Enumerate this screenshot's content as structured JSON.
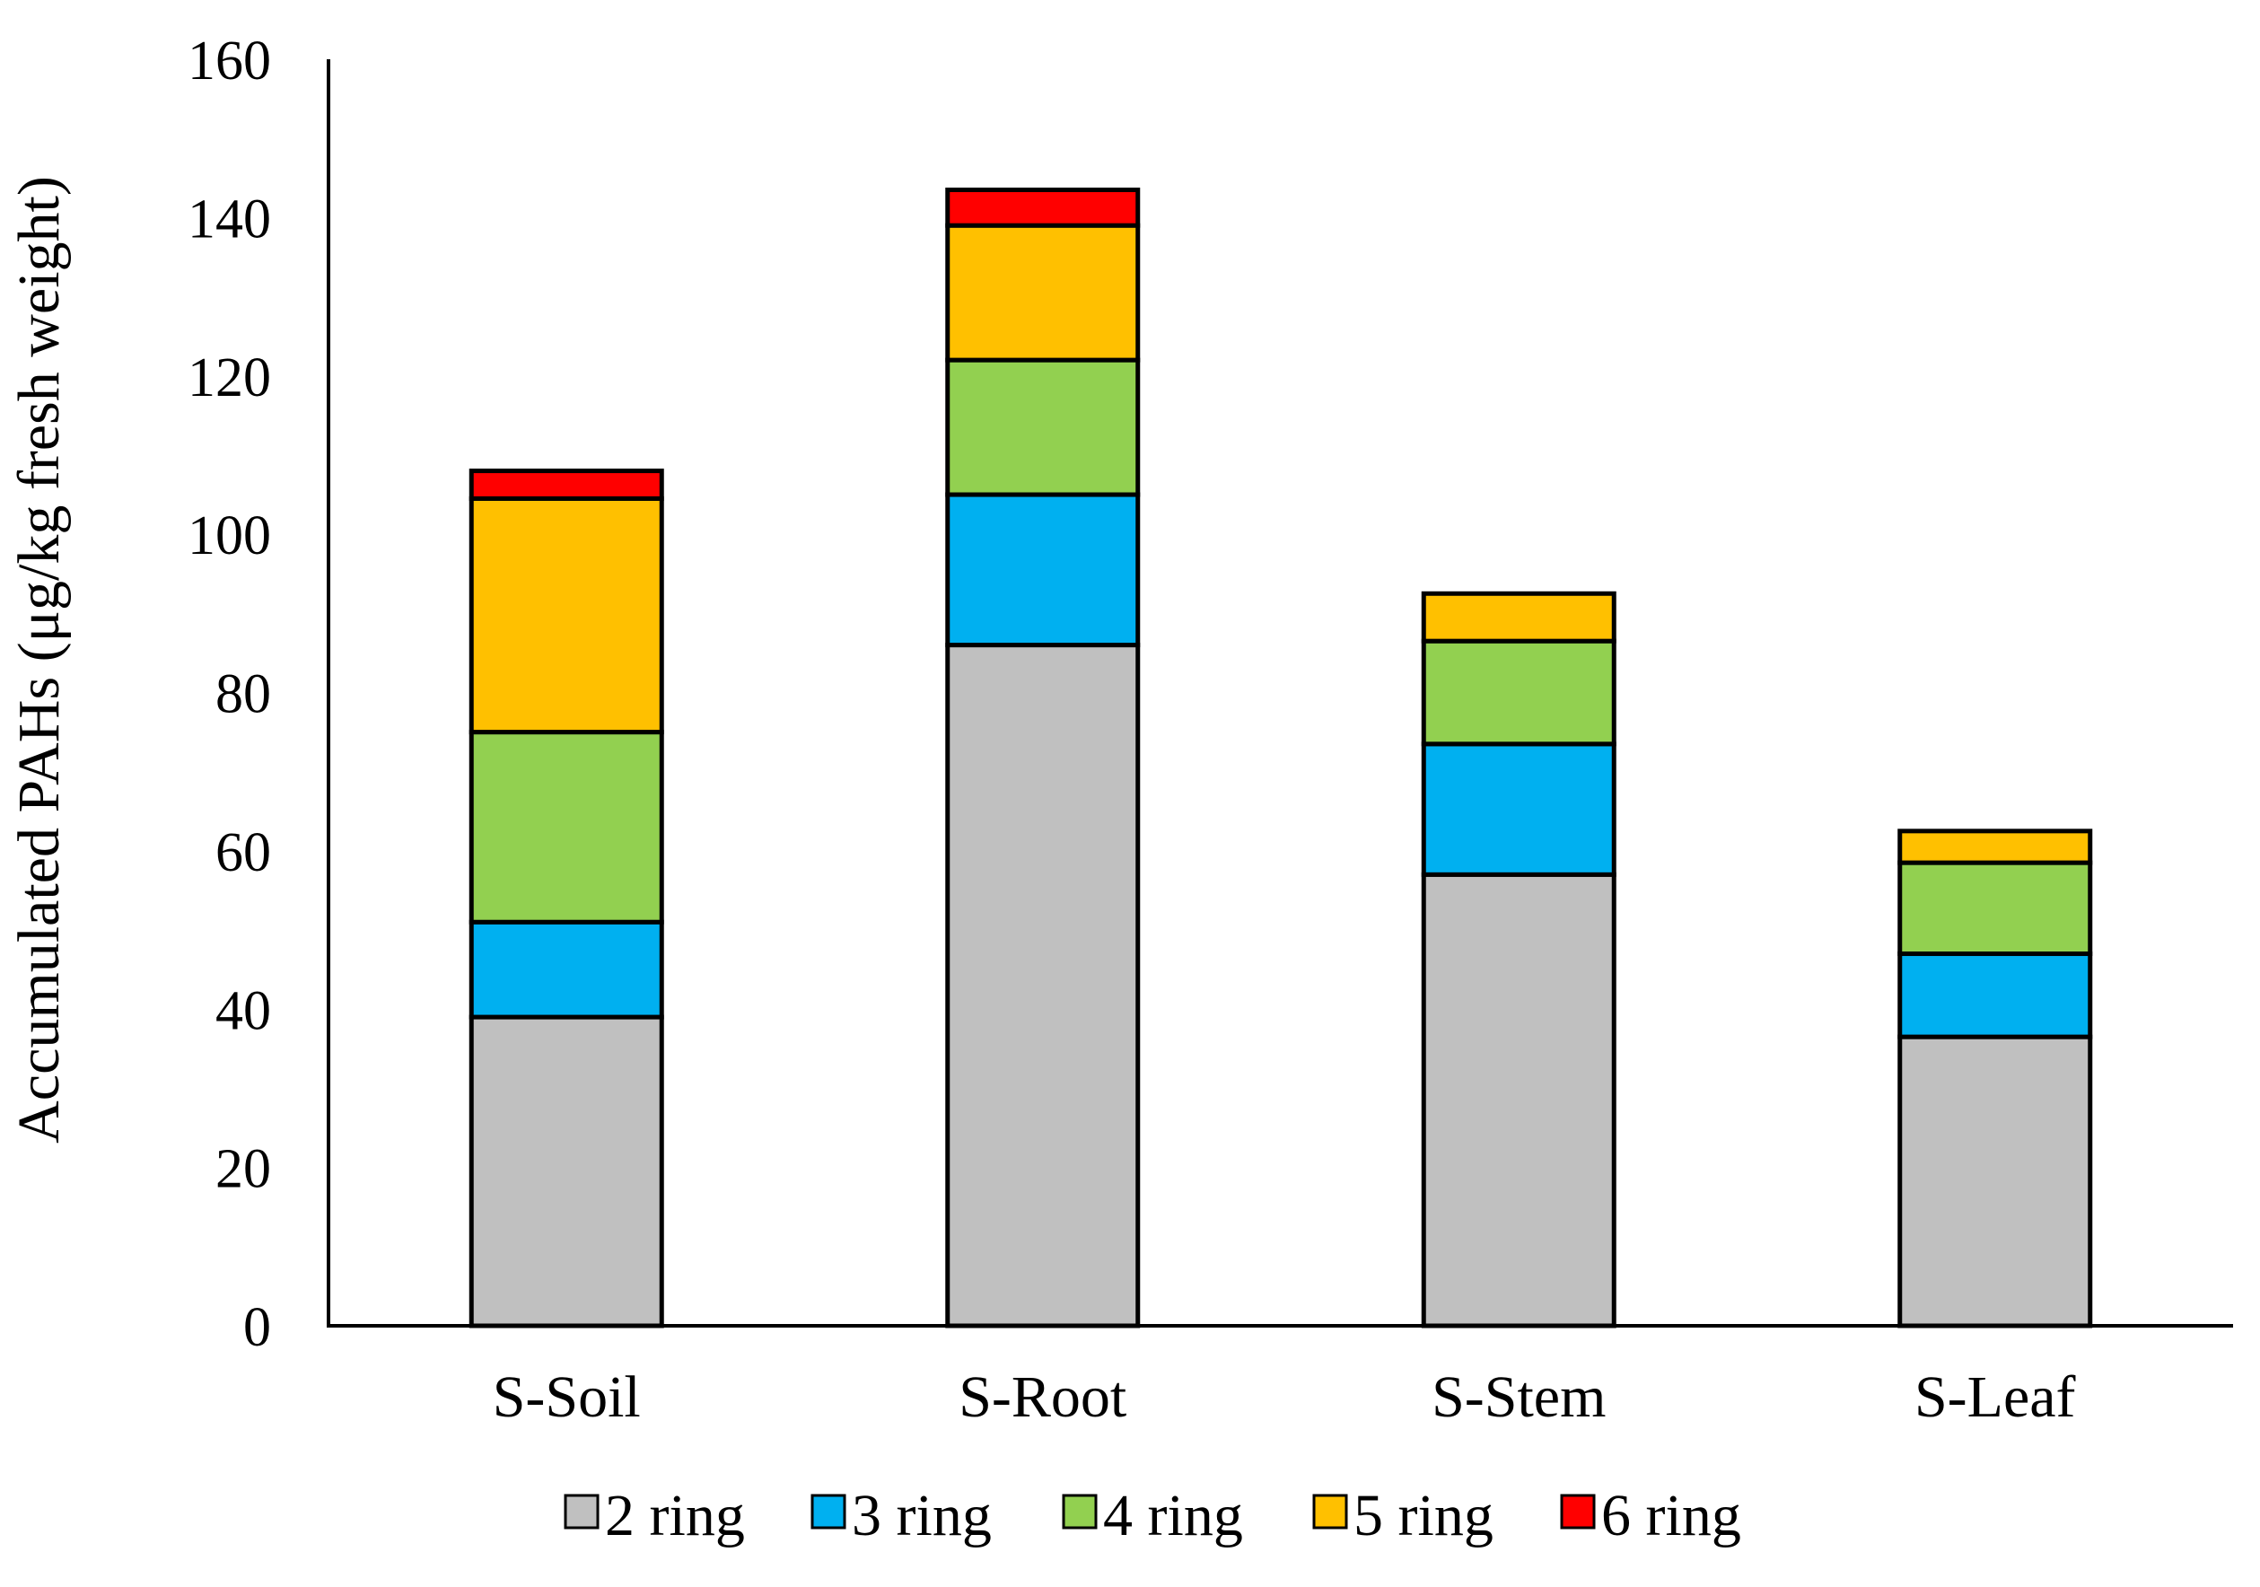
{
  "chart_data": {
    "type": "bar",
    "stacked": true,
    "title": "",
    "xlabel": "",
    "ylabel": "Accumulated PAHs (μg/kg fresh weight)",
    "ylim": [
      0,
      160
    ],
    "yticks": [
      0,
      20,
      40,
      60,
      80,
      100,
      120,
      140,
      160
    ],
    "grid": false,
    "legend_position": "bottom",
    "categories": [
      "S-Soil",
      "S-Root",
      "S-Stem",
      "S-Leaf"
    ],
    "series": [
      {
        "name": "2 ring",
        "color": "#c0c0c0",
        "values": [
          39,
          86,
          57,
          36.5
        ]
      },
      {
        "name": "3 ring",
        "color": "#00b0f0",
        "values": [
          12,
          19,
          16.5,
          10.5
        ]
      },
      {
        "name": "4 ring",
        "color": "#92d050",
        "values": [
          24,
          17,
          13,
          11.5
        ]
      },
      {
        "name": "5 ring",
        "color": "#ffc000",
        "values": [
          29.5,
          17,
          6,
          4
        ]
      },
      {
        "name": "6 ring",
        "color": "#ff0000",
        "values": [
          3.5,
          4.5,
          0,
          0
        ]
      }
    ]
  }
}
